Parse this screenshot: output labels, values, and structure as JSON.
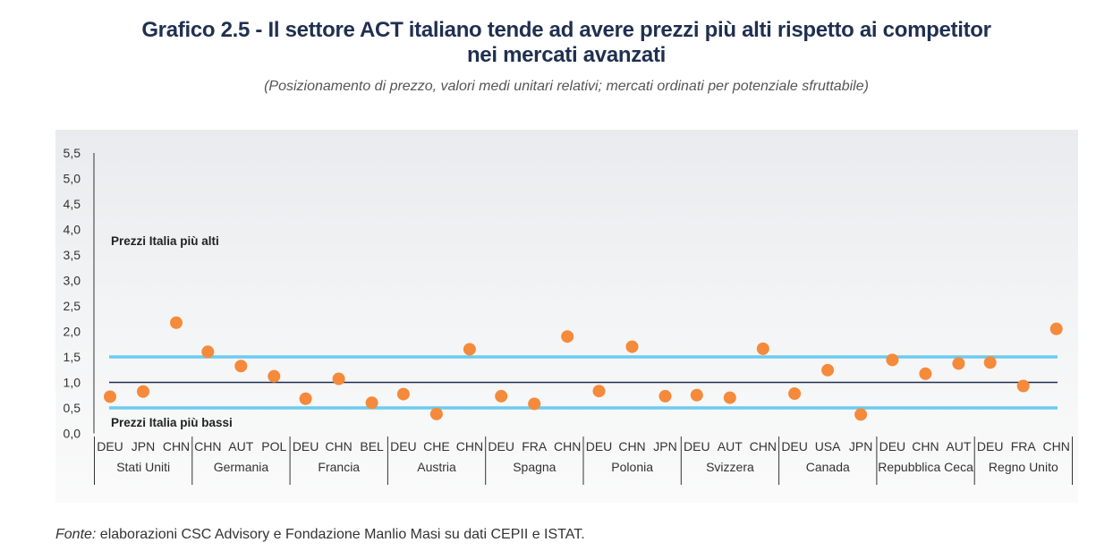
{
  "header": {
    "title_line1": "Grafico 2.5 - Il settore ACT italiano tende ad avere prezzi più alti rispetto ai competitor",
    "title_line2": "nei mercati avanzati",
    "subtitle": "(Posizionamento di prezzo, valori medi unitari relativi; mercati ordinati per potenziale sfruttabile)"
  },
  "footer": {
    "source_label": "Fonte:",
    "source_text": " elaborazioni CSC Advisory e Fondazione Manlio Masi su dati CEPII e ISTAT."
  },
  "chart_data": {
    "type": "scatter",
    "title": "",
    "ylim": [
      0,
      5.5
    ],
    "yticks": [
      "0,0",
      "0,5",
      "1,0",
      "1,5",
      "2,0",
      "2,5",
      "3,0",
      "3,5",
      "4,0",
      "4,5",
      "5,0",
      "5,5"
    ],
    "annotations": {
      "upper": "Prezzi Italia più alti",
      "lower": "Prezzi Italia più bassi"
    },
    "reference_lines": [
      {
        "y": 1.5,
        "color": "#6ccbf0"
      },
      {
        "y": 1.0,
        "color": "#1f3050"
      },
      {
        "y": 0.5,
        "color": "#6ccbf0"
      }
    ],
    "point_color": "#f58a3a",
    "groups": [
      {
        "market": "Stati Uniti",
        "competitors": [
          "DEU",
          "JPN",
          "CHN"
        ],
        "values": [
          0.72,
          0.82,
          2.17
        ]
      },
      {
        "market": "Germania",
        "competitors": [
          "CHN",
          "AUT",
          "POL"
        ],
        "values": [
          1.6,
          1.32,
          1.12
        ]
      },
      {
        "market": "Francia",
        "competitors": [
          "DEU",
          "CHN",
          "BEL"
        ],
        "values": [
          0.68,
          1.07,
          0.6
        ]
      },
      {
        "market": "Austria",
        "competitors": [
          "DEU",
          "CHE",
          "CHN"
        ],
        "values": [
          0.77,
          0.38,
          1.65
        ]
      },
      {
        "market": "Spagna",
        "competitors": [
          "DEU",
          "FRA",
          "CHN"
        ],
        "values": [
          0.73,
          0.58,
          1.9
        ]
      },
      {
        "market": "Polonia",
        "competitors": [
          "DEU",
          "CHN",
          "JPN"
        ],
        "values": [
          0.83,
          1.7,
          0.73
        ]
      },
      {
        "market": "Svizzera",
        "competitors": [
          "DEU",
          "AUT",
          "CHN"
        ],
        "values": [
          0.75,
          0.7,
          1.66
        ]
      },
      {
        "market": "Canada",
        "competitors": [
          "DEU",
          "USA",
          "JPN"
        ],
        "values": [
          0.78,
          1.24,
          0.37
        ]
      },
      {
        "market": "Repubblica Ceca",
        "competitors": [
          "DEU",
          "CHN",
          "AUT"
        ],
        "values": [
          1.44,
          1.17,
          1.37
        ]
      },
      {
        "market": "Regno Unito",
        "competitors": [
          "DEU",
          "FRA",
          "CHN"
        ],
        "values": [
          1.39,
          0.93,
          2.05
        ]
      }
    ]
  }
}
